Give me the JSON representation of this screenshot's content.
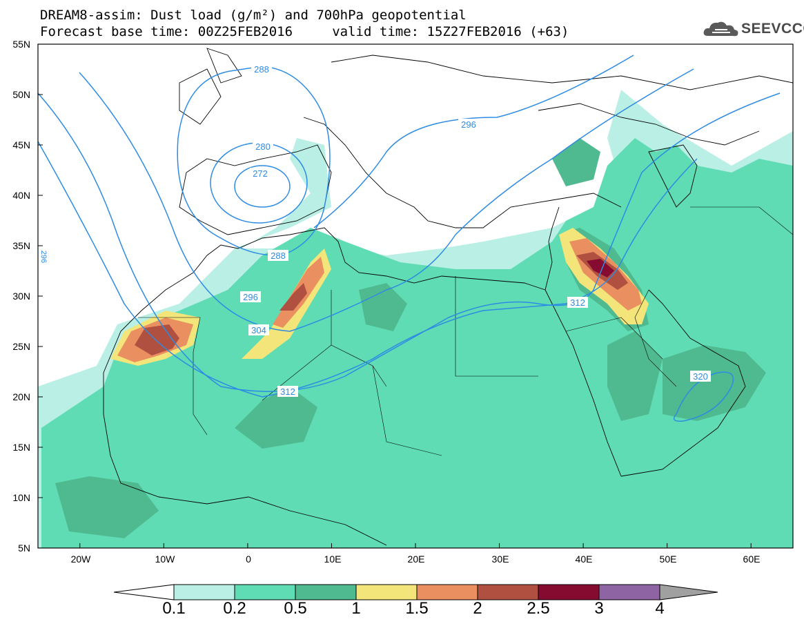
{
  "title": {
    "line1": "DREAM8-assim: Dust load (g/m²) and 700hPa geopotential",
    "line2": "Forecast base time: 00Z25FEB2016     valid time: 15Z27FEB2016 (+63)"
  },
  "logo": {
    "text": "SEEVCCC",
    "icon": "cloud-icon"
  },
  "map": {
    "lon_range": [
      -25,
      65
    ],
    "lat_range": [
      5,
      55
    ],
    "lat_ticks": [
      "55N",
      "50N",
      "45N",
      "40N",
      "35N",
      "30N",
      "25N",
      "20N",
      "15N",
      "10N",
      "5N"
    ],
    "lon_ticks": [
      "20W",
      "10W",
      "0",
      "10E",
      "20E",
      "30E",
      "40E",
      "50E",
      "60E"
    ]
  },
  "contour_labels": [
    "288",
    "280",
    "272",
    "296",
    "288",
    "296",
    "304",
    "312",
    "312",
    "320",
    "296"
  ],
  "colorbar": {
    "labels": [
      "0.1",
      "0.2",
      "0.5",
      "1",
      "1.5",
      "2",
      "2.5",
      "3",
      "4"
    ],
    "colors": [
      "#ffffff",
      "#b9efe5",
      "#5fdcb4",
      "#4fb98f",
      "#f3e57a",
      "#ea9060",
      "#b05040",
      "#850c30",
      "#8e64a2",
      "#a0a0a0"
    ]
  }
}
